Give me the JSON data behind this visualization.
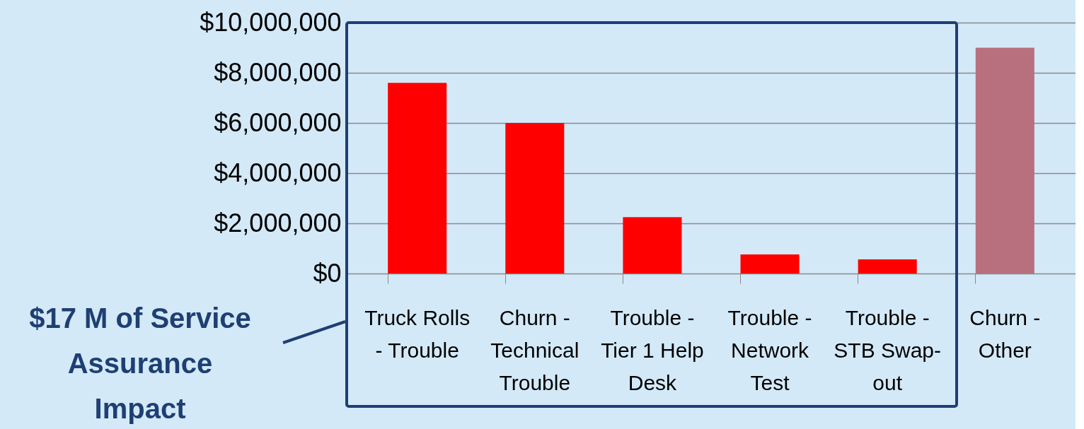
{
  "chart_data": {
    "type": "bar",
    "categories": [
      "Truck Rolls - Trouble",
      "Churn - Technical Trouble",
      "Trouble - Tier 1 Help Desk",
      "Trouble - Network Test",
      "Trouble - STB Swap-out",
      "Churn - Other"
    ],
    "values": [
      7600000,
      6000000,
      2250000,
      760000,
      560000,
      9000000
    ],
    "colors": [
      "#ff0000",
      "#ff0000",
      "#ff0000",
      "#ff0000",
      "#ff0000",
      "#b8707e"
    ],
    "ylim": [
      0,
      10000000
    ],
    "yticks": [
      {
        "value": 0,
        "label": "$0"
      },
      {
        "value": 2000000,
        "label": "$2,000,000"
      },
      {
        "value": 4000000,
        "label": "$4,000,000"
      },
      {
        "value": 6000000,
        "label": "$6,000,000"
      },
      {
        "value": 8000000,
        "label": "$8,000,000"
      },
      {
        "value": 10000000,
        "label": "$10,000,000"
      }
    ],
    "grid": "y",
    "annotations": [
      "$17 M of Service Assurance Impact"
    ]
  }
}
